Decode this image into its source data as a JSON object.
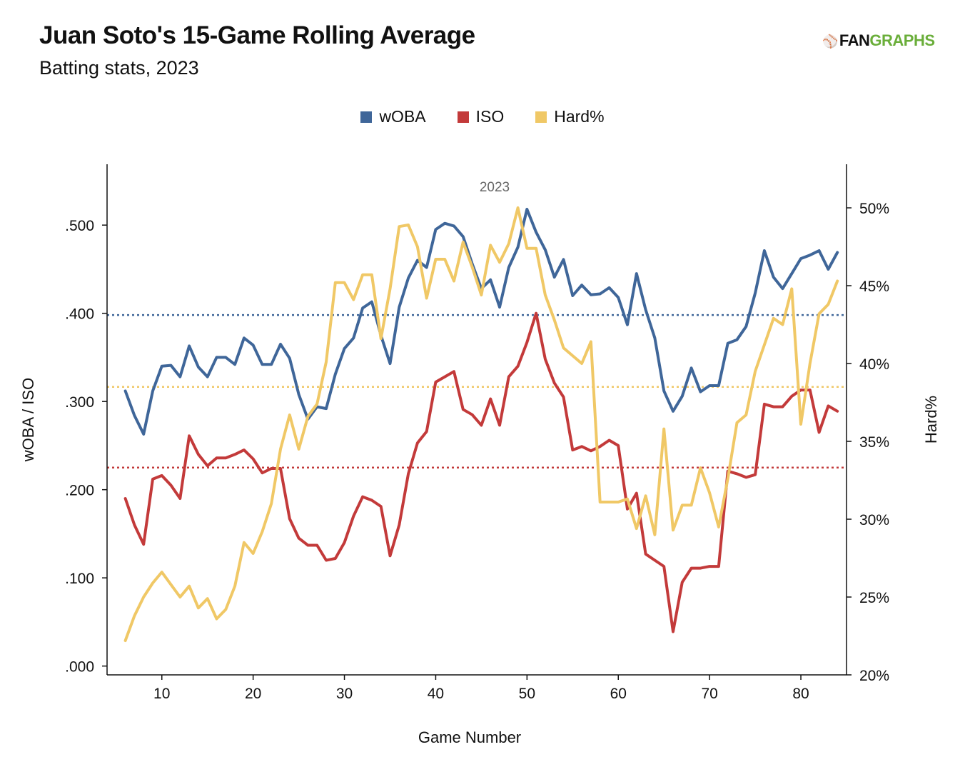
{
  "header": {
    "title": "Juan Soto's 15-Game Rolling Average",
    "subtitle": "Batting stats, 2023",
    "brand_mark": "⚾",
    "brand_fan": "FAN",
    "brand_graphs": "GRAPHS"
  },
  "colors": {
    "woba": "#3f6699",
    "iso": "#c33a3a",
    "hard": "#f0c866",
    "axis": "#111111"
  },
  "chart_data": {
    "type": "line",
    "title": "Juan Soto's 15-Game Rolling Average",
    "subtitle": "Batting stats, 2023",
    "xlabel": "Game Number",
    "ylabel_left": "wOBA / ISO",
    "ylabel_right": "Hard%",
    "annotation": "2023",
    "xlim": [
      4,
      85
    ],
    "ylim_left": [
      -0.01,
      0.569
    ],
    "ylim_right": [
      0.2,
      0.528
    ],
    "x_ticks": [
      {
        "v": 10,
        "label": "10"
      },
      {
        "v": 20,
        "label": "20"
      },
      {
        "v": 30,
        "label": "30"
      },
      {
        "v": 40,
        "label": "40"
      },
      {
        "v": 50,
        "label": "50"
      },
      {
        "v": 60,
        "label": "60"
      },
      {
        "v": 70,
        "label": "70"
      },
      {
        "v": 80,
        "label": "80"
      }
    ],
    "y_left_ticks": [
      {
        "v": 0.0,
        "label": ".000"
      },
      {
        "v": 0.1,
        "label": ".100"
      },
      {
        "v": 0.2,
        "label": ".200"
      },
      {
        "v": 0.3,
        "label": ".300"
      },
      {
        "v": 0.4,
        "label": ".400"
      },
      {
        "v": 0.5,
        "label": ".500"
      }
    ],
    "y_right_ticks": [
      {
        "v": 0.2,
        "label": "20%"
      },
      {
        "v": 0.25,
        "label": "25%"
      },
      {
        "v": 0.3,
        "label": "30%"
      },
      {
        "v": 0.35,
        "label": "35%"
      },
      {
        "v": 0.4,
        "label": "40%"
      },
      {
        "v": 0.45,
        "label": "45%"
      },
      {
        "v": 0.5,
        "label": "50%"
      }
    ],
    "legend_position": "top-center",
    "grid": false,
    "x": [
      6,
      7,
      8,
      9,
      10,
      11,
      12,
      13,
      14,
      15,
      16,
      17,
      18,
      19,
      20,
      21,
      22,
      23,
      24,
      25,
      26,
      27,
      28,
      29,
      30,
      31,
      32,
      33,
      34,
      35,
      36,
      37,
      38,
      39,
      40,
      41,
      42,
      43,
      44,
      45,
      46,
      47,
      48,
      49,
      50,
      51,
      52,
      53,
      54,
      55,
      56,
      57,
      58,
      59,
      60,
      61,
      62,
      63,
      64,
      65,
      66,
      67,
      68,
      69,
      70,
      71,
      72,
      73,
      74,
      75,
      76,
      77,
      78,
      79,
      80,
      81,
      82,
      83,
      84
    ],
    "series": [
      {
        "name": "wOBA",
        "axis": "left",
        "color": "#3f6699",
        "values": [
          0.312,
          0.284,
          0.263,
          0.312,
          0.34,
          0.341,
          0.328,
          0.363,
          0.339,
          0.328,
          0.35,
          0.35,
          0.342,
          0.372,
          0.364,
          0.342,
          0.342,
          0.365,
          0.349,
          0.308,
          0.28,
          0.294,
          0.292,
          0.331,
          0.36,
          0.372,
          0.406,
          0.413,
          0.375,
          0.343,
          0.407,
          0.44,
          0.46,
          0.452,
          0.495,
          0.502,
          0.499,
          0.487,
          0.456,
          0.428,
          0.438,
          0.407,
          0.452,
          0.475,
          0.518,
          0.492,
          0.472,
          0.441,
          0.461,
          0.42,
          0.432,
          0.421,
          0.422,
          0.429,
          0.418,
          0.387,
          0.445,
          0.404,
          0.372,
          0.312,
          0.289,
          0.306,
          0.338,
          0.311,
          0.318,
          0.318,
          0.366,
          0.37,
          0.385,
          0.423,
          0.471,
          0.441,
          0.428,
          0.445,
          0.462,
          0.466,
          0.471,
          0.45,
          0.469
        ]
      },
      {
        "name": "ISO",
        "axis": "left",
        "color": "#c33a3a",
        "values": [
          0.19,
          0.16,
          0.138,
          0.212,
          0.216,
          0.205,
          0.19,
          0.261,
          0.24,
          0.227,
          0.236,
          0.236,
          0.24,
          0.245,
          0.235,
          0.219,
          0.224,
          0.224,
          0.167,
          0.145,
          0.137,
          0.137,
          0.12,
          0.122,
          0.14,
          0.17,
          0.192,
          0.188,
          0.181,
          0.125,
          0.16,
          0.218,
          0.253,
          0.266,
          0.322,
          0.328,
          0.334,
          0.291,
          0.285,
          0.273,
          0.303,
          0.273,
          0.328,
          0.34,
          0.367,
          0.4,
          0.348,
          0.321,
          0.305,
          0.245,
          0.249,
          0.244,
          0.249,
          0.256,
          0.25,
          0.178,
          0.196,
          0.127,
          0.12,
          0.113,
          0.039,
          0.095,
          0.111,
          0.111,
          0.113,
          0.113,
          0.221,
          0.218,
          0.214,
          0.217,
          0.297,
          0.294,
          0.294,
          0.306,
          0.313,
          0.313,
          0.265,
          0.295,
          0.289
        ]
      },
      {
        "name": "Hard%",
        "axis": "right",
        "color": "#f0c866",
        "values": [
          0.222,
          0.238,
          0.25,
          0.259,
          0.266,
          0.258,
          0.25,
          0.257,
          0.243,
          0.249,
          0.236,
          0.242,
          0.257,
          0.285,
          0.278,
          0.292,
          0.31,
          0.345,
          0.367,
          0.345,
          0.366,
          0.374,
          0.401,
          0.452,
          0.452,
          0.441,
          0.457,
          0.457,
          0.416,
          0.448,
          0.488,
          0.489,
          0.475,
          0.442,
          0.467,
          0.467,
          0.453,
          0.478,
          0.462,
          0.444,
          0.476,
          0.465,
          0.477,
          0.5,
          0.474,
          0.474,
          0.444,
          0.428,
          0.41,
          0.405,
          0.4,
          0.414,
          0.311,
          0.311,
          0.311,
          0.313,
          0.294,
          0.315,
          0.29,
          0.358,
          0.293,
          0.309,
          0.309,
          0.333,
          0.317,
          0.295,
          0.326,
          0.362,
          0.367,
          0.395,
          0.412,
          0.429,
          0.425,
          0.448,
          0.361,
          0.4,
          0.432,
          0.438,
          0.453
        ]
      }
    ],
    "reference_lines": [
      {
        "name": "wOBA average",
        "axis": "left",
        "value": 0.398,
        "color": "#3f6699"
      },
      {
        "name": "ISO average",
        "axis": "left",
        "value": 0.225,
        "color": "#c33a3a"
      },
      {
        "name": "Hard% average",
        "axis": "right",
        "value": 0.385,
        "color": "#f0c866"
      }
    ]
  }
}
